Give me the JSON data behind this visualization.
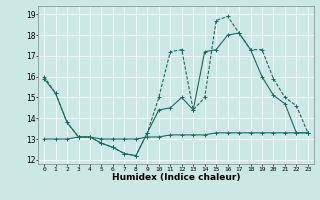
{
  "xlabel": "Humidex (Indice chaleur)",
  "bg_color": "#cce8e4",
  "line_color": "#1a6b5a",
  "grid_color": "#ffffff",
  "xlim": [
    -0.5,
    23.5
  ],
  "ylim": [
    11.8,
    19.4
  ],
  "yticks": [
    12,
    13,
    14,
    15,
    16,
    17,
    18,
    19
  ],
  "xticks": [
    0,
    1,
    2,
    3,
    4,
    5,
    6,
    7,
    8,
    9,
    10,
    11,
    12,
    13,
    14,
    15,
    16,
    17,
    18,
    19,
    20,
    21,
    22,
    23
  ],
  "line1_x": [
    0,
    1,
    2,
    3,
    4,
    5,
    6,
    7,
    8,
    9,
    10,
    11,
    12,
    13,
    14,
    15,
    16,
    17,
    18,
    19,
    20,
    21,
    22,
    23
  ],
  "line1_y": [
    15.9,
    15.2,
    13.8,
    13.1,
    13.1,
    12.8,
    12.6,
    12.3,
    12.2,
    13.3,
    14.4,
    14.5,
    15.0,
    14.4,
    17.2,
    17.3,
    18.0,
    18.1,
    17.3,
    16.0,
    15.1,
    14.7,
    13.3,
    13.3
  ],
  "line2_x": [
    0,
    1,
    2,
    3,
    4,
    5,
    6,
    7,
    8,
    9,
    10,
    11,
    12,
    13,
    14,
    15,
    16,
    17,
    18,
    19,
    20,
    21,
    22,
    23
  ],
  "line2_y": [
    16.0,
    15.2,
    13.8,
    13.1,
    13.1,
    12.8,
    12.6,
    12.3,
    12.2,
    13.3,
    15.0,
    17.2,
    17.3,
    14.4,
    15.0,
    18.7,
    18.9,
    18.1,
    17.3,
    17.3,
    15.9,
    15.0,
    14.6,
    13.3
  ],
  "line3_x": [
    0,
    1,
    2,
    3,
    4,
    5,
    6,
    7,
    8,
    9,
    10,
    11,
    12,
    13,
    14,
    15,
    16,
    17,
    18,
    19,
    20,
    21,
    22,
    23
  ],
  "line3_y": [
    13.0,
    13.0,
    13.0,
    13.1,
    13.1,
    13.0,
    13.0,
    13.0,
    13.0,
    13.1,
    13.1,
    13.2,
    13.2,
    13.2,
    13.2,
    13.3,
    13.3,
    13.3,
    13.3,
    13.3,
    13.3,
    13.3,
    13.3,
    13.3
  ]
}
